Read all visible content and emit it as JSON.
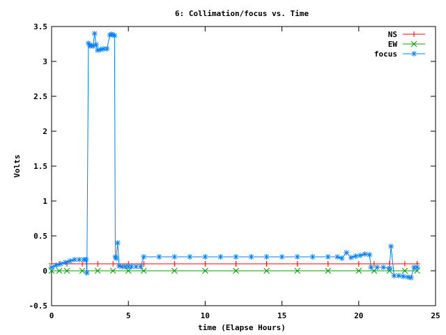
{
  "chart_data": {
    "type": "line",
    "title": "6: Collimation/focus vs. Time",
    "xlabel": "time (Elapse Hours)",
    "ylabel": "Volts",
    "xlim": [
      0,
      25
    ],
    "ylim": [
      -0.5,
      3.5
    ],
    "xticks": [
      0,
      5,
      10,
      15,
      20,
      25
    ],
    "xtick_labels": [
      "0",
      "5",
      "10",
      "15",
      "20",
      "25"
    ],
    "yticks": [
      -0.5,
      0,
      0.5,
      1,
      1.5,
      2,
      2.5,
      3,
      3.5
    ],
    "ytick_labels": [
      "-0.5",
      "0",
      "0.5",
      "1",
      "1.5",
      "2",
      "2.5",
      "3",
      "3.5"
    ],
    "grid": false,
    "legend_position": "top-right",
    "series": [
      {
        "name": "NS",
        "color": "#ff0000",
        "marker": "plus",
        "x": [
          0,
          0.5,
          1,
          2,
          3,
          4,
          5,
          6,
          8,
          10,
          12,
          14,
          16,
          18,
          20,
          21,
          22,
          23,
          23.8
        ],
        "y": [
          0.1,
          0.1,
          0.1,
          0.1,
          0.1,
          0.1,
          0.1,
          0.1,
          0.1,
          0.1,
          0.1,
          0.1,
          0.1,
          0.1,
          0.1,
          0.1,
          0.1,
          0.1,
          0.1
        ]
      },
      {
        "name": "EW",
        "color": "#00a000",
        "marker": "cross",
        "x": [
          0,
          0.5,
          1,
          2,
          3,
          4,
          5,
          6,
          8,
          10,
          12,
          14,
          16,
          18,
          20,
          21,
          22,
          23,
          23.8
        ],
        "y": [
          0,
          0,
          0,
          0,
          0,
          0,
          0,
          0,
          0,
          0,
          0,
          0,
          0,
          0,
          0,
          0,
          0,
          0,
          0
        ]
      },
      {
        "name": "focus",
        "color": "#0080ff",
        "marker": "star",
        "x": [
          0,
          0.3,
          0.6,
          0.9,
          1.2,
          1.5,
          1.8,
          2.1,
          2.25,
          2.3,
          2.4,
          2.5,
          2.6,
          2.7,
          2.8,
          2.9,
          3.0,
          3.2,
          3.4,
          3.6,
          3.8,
          3.9,
          4.0,
          4.1,
          4.15,
          4.2,
          4.3,
          4.4,
          4.6,
          4.8,
          5.0,
          5.2,
          5.5,
          5.8,
          6.0,
          7,
          8,
          9,
          10,
          11,
          12,
          13,
          14,
          15,
          16,
          17,
          18,
          18.6,
          18.9,
          19.2,
          19.5,
          19.8,
          20.1,
          20.4,
          20.7,
          20.8,
          21.2,
          21.6,
          22.0,
          22.1,
          22.3,
          22.6,
          22.9,
          23.2,
          23.4,
          23.6,
          23.8
        ],
        "y": [
          0.05,
          0.08,
          0.1,
          0.12,
          0.14,
          0.16,
          0.16,
          0.16,
          0.16,
          -0.03,
          3.26,
          3.22,
          3.23,
          3.22,
          3.4,
          3.24,
          3.16,
          3.17,
          3.18,
          3.18,
          3.38,
          3.39,
          3.38,
          3.37,
          0.2,
          0.18,
          0.4,
          0.07,
          0.06,
          0.06,
          0.06,
          0.06,
          0.06,
          0.06,
          0.2,
          0.2,
          0.2,
          0.2,
          0.2,
          0.2,
          0.2,
          0.2,
          0.2,
          0.2,
          0.2,
          0.2,
          0.2,
          0.2,
          0.18,
          0.26,
          0.19,
          0.21,
          0.22,
          0.24,
          0.23,
          0.05,
          0.05,
          0.05,
          0.04,
          0.35,
          -0.07,
          -0.07,
          -0.08,
          -0.09,
          -0.1,
          0.05,
          0.05
        ]
      }
    ]
  }
}
